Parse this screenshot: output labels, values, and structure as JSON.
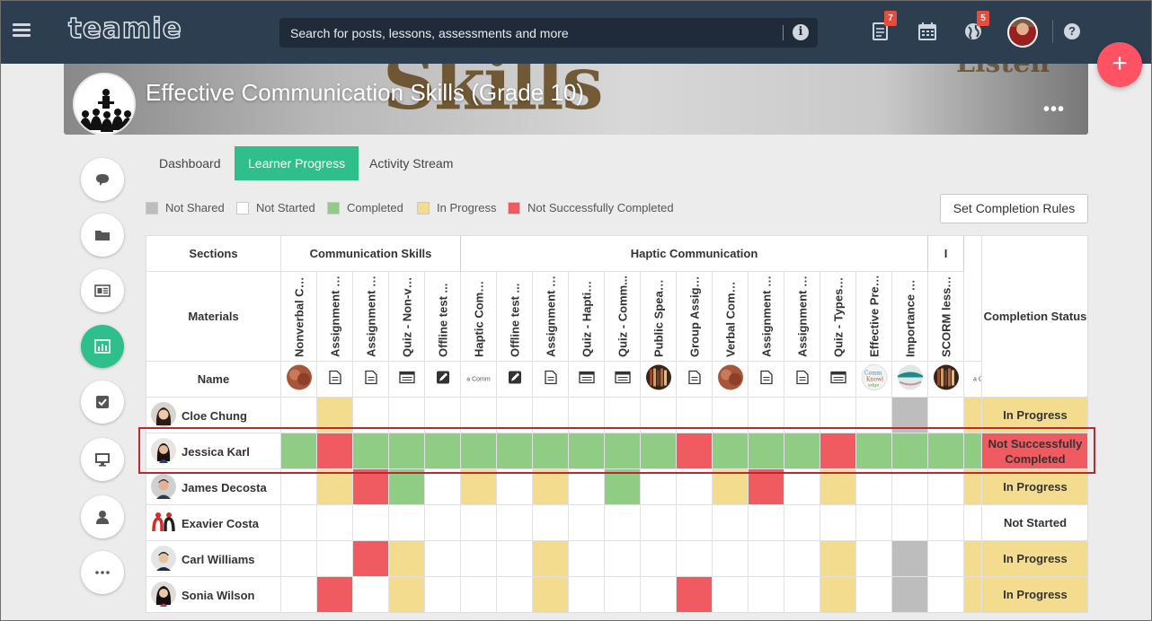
{
  "brand": {
    "logo_text": "teamie"
  },
  "search": {
    "placeholder": "Search for posts, lessons, assessments and more"
  },
  "top_icons": [
    {
      "name": "document-icon",
      "badge": "7"
    },
    {
      "name": "calendar-icon",
      "badge": ""
    },
    {
      "name": "globe-icon",
      "badge": "5"
    }
  ],
  "course": {
    "title": "Effective Communication Skills (Grade 10)",
    "more": "•••",
    "banner_words": [
      "Skills",
      "Listen"
    ]
  },
  "fab": {
    "label": "+"
  },
  "tabs": [
    {
      "label": "Dashboard",
      "active": false
    },
    {
      "label": "Learner Progress",
      "active": true
    },
    {
      "label": "Activity Stream",
      "active": false
    }
  ],
  "legend": [
    {
      "label": "Not Shared",
      "color": "#bdbdbd"
    },
    {
      "label": "Not Started",
      "color": "#ffffff"
    },
    {
      "label": "Completed",
      "color": "#8fcd85"
    },
    {
      "label": "In Progress",
      "color": "#f4dc8f"
    },
    {
      "label": "Not Successfully Completed",
      "color": "#ef5b61"
    }
  ],
  "set_rules_label": "Set Completion Rules",
  "table": {
    "sections_label": "Sections",
    "materials_label": "Materials",
    "name_label": "Name",
    "completion_label": "Completion Status",
    "sections": [
      {
        "title": "Communication Skills",
        "span": 5
      },
      {
        "title": "Haptic Communication",
        "span": 13
      },
      {
        "title": "I",
        "span": 1
      }
    ],
    "materials": [
      {
        "title": "Nonverbal Co...",
        "icon": "thumb-brown"
      },
      {
        "title": "Assignment - ...",
        "icon": "assignment-icon"
      },
      {
        "title": "Assignment - ...",
        "icon": "assignment-icon"
      },
      {
        "title": "Quiz - Non-ve...",
        "icon": "quiz-icon"
      },
      {
        "title": "Offline test ...",
        "icon": "offline-test-icon"
      },
      {
        "title": "Haptic Comm...",
        "icon": "thumb-text"
      },
      {
        "title": "Offline test ...",
        "icon": "offline-test-icon"
      },
      {
        "title": "Assignment - ...",
        "icon": "assignment-icon"
      },
      {
        "title": "Quiz - Haptic ...",
        "icon": "quiz-icon"
      },
      {
        "title": "Quiz - Comm...",
        "icon": "quiz-icon"
      },
      {
        "title": "Public Speaki...",
        "icon": "thumb-books"
      },
      {
        "title": "Group Assign...",
        "icon": "assignment-icon"
      },
      {
        "title": "Verbal Comm...",
        "icon": "thumb-brown"
      },
      {
        "title": "Assignment - ...",
        "icon": "assignment-icon"
      },
      {
        "title": "Assignment - ...",
        "icon": "assignment-icon"
      },
      {
        "title": "Quiz - Types o...",
        "icon": "quiz-icon"
      },
      {
        "title": "Effective Pres...",
        "icon": "thumb-wordcloud"
      },
      {
        "title": "Importance o...",
        "icon": "thumb-teal"
      },
      {
        "title": "SCORM lesson",
        "icon": "thumb-books"
      }
    ],
    "thumb_text_label": "a Comm",
    "overflow_thumb_label": "a C",
    "learners": [
      {
        "name": "Cloe Chung",
        "avatar": "f1",
        "status": "In Progress",
        "status_color": "#f4dc8f",
        "cells": [
          "N",
          "P",
          "N",
          "N",
          "N",
          "N",
          "N",
          "N",
          "N",
          "N",
          "N",
          "N",
          "N",
          "N",
          "N",
          "N",
          "N",
          "S",
          "N",
          "P"
        ]
      },
      {
        "name": "Jessica Karl",
        "avatar": "f2",
        "status": "Not Successfully Completed",
        "status_color": "#ef5b61",
        "cells": [
          "C",
          "X",
          "C",
          "C",
          "C",
          "C",
          "C",
          "C",
          "C",
          "C",
          "C",
          "X",
          "C",
          "C",
          "C",
          "X",
          "C",
          "C",
          "C",
          "C"
        ]
      },
      {
        "name": "James Decosta",
        "avatar": "m1",
        "status": "In Progress",
        "status_color": "#f4dc8f",
        "cells": [
          "N",
          "P",
          "X",
          "C",
          "N",
          "P",
          "N",
          "P",
          "N",
          "C",
          "N",
          "N",
          "P",
          "X",
          "N",
          "P",
          "N",
          "N",
          "N",
          "P"
        ]
      },
      {
        "name": "Exavier Costa",
        "avatar": "logo",
        "status": "Not Started",
        "status_color": "#ffffff",
        "cells": [
          "N",
          "N",
          "N",
          "N",
          "N",
          "N",
          "N",
          "N",
          "N",
          "N",
          "N",
          "N",
          "N",
          "N",
          "N",
          "N",
          "N",
          "N",
          "N",
          "N"
        ]
      },
      {
        "name": "Carl Williams",
        "avatar": "m2",
        "status": "In Progress",
        "status_color": "#f4dc8f",
        "cells": [
          "N",
          "N",
          "X",
          "P",
          "N",
          "N",
          "N",
          "P",
          "N",
          "N",
          "N",
          "N",
          "N",
          "N",
          "N",
          "P",
          "N",
          "S",
          "N",
          "P"
        ]
      },
      {
        "name": "Sonia Wilson",
        "avatar": "f3",
        "status": "In Progress",
        "status_color": "#f4dc8f",
        "cells": [
          "N",
          "X",
          "N",
          "P",
          "N",
          "N",
          "N",
          "P",
          "N",
          "N",
          "N",
          "X",
          "N",
          "N",
          "N",
          "P",
          "N",
          "S",
          "N",
          "P"
        ]
      }
    ]
  },
  "cell_colors": {
    "N": "#ffffff",
    "C": "#8fcd85",
    "P": "#f4dc8f",
    "X": "#ef5b61",
    "S": "#bdbdbd"
  },
  "rail": [
    {
      "name": "chat-icon",
      "active": false
    },
    {
      "name": "folder-icon",
      "active": false
    },
    {
      "name": "newspaper-icon",
      "active": false
    },
    {
      "name": "bar-chart-icon",
      "active": true
    },
    {
      "name": "checkbox-icon",
      "active": false
    },
    {
      "name": "monitor-icon",
      "active": false
    },
    {
      "name": "user-icon",
      "active": false
    },
    {
      "name": "more-icon",
      "active": false
    }
  ]
}
